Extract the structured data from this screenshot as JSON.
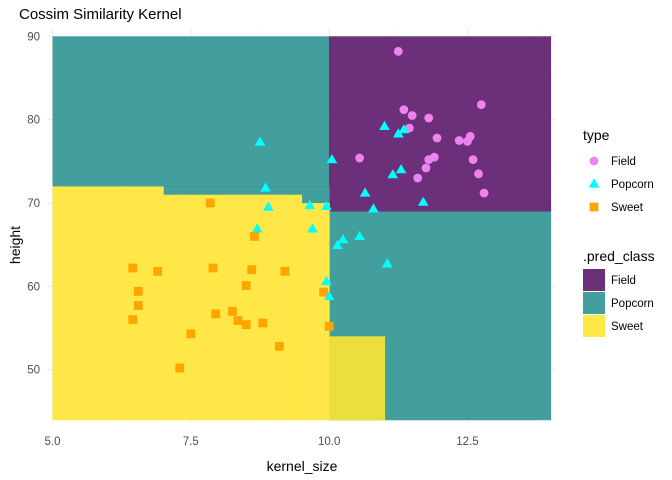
{
  "chart_data": {
    "type": "scatter",
    "title": "Cossim Similarity Kernel",
    "xlabel": "kernel_size",
    "ylabel": "height",
    "xlim": [
      4.9,
      14.1
    ],
    "ylim": [
      43.6,
      91
    ],
    "x_ticks": [
      5.0,
      7.5,
      10.0,
      12.5
    ],
    "x_tick_labels": [
      "5.0",
      "7.5",
      "10.0",
      "12.5"
    ],
    "y_ticks": [
      50,
      60,
      70,
      80,
      90
    ],
    "y_tick_labels": [
      "50",
      "60",
      "70",
      "80",
      "90"
    ],
    "grid": true,
    "legend_position": "right",
    "colors": {
      "Field_region": "#5b1a6a",
      "Popcorn_region": "#2e9592",
      "Sweet_region": "#ffe433",
      "Field_point": "#ee82ee",
      "Popcorn_point": "#00ffff",
      "Sweet_point": "#ffa500"
    },
    "prediction_regions": [
      {
        "class": "Popcorn",
        "x": [
          5.0,
          10.0
        ],
        "y": [
          72.0,
          90.0
        ]
      },
      {
        "class": "Field",
        "x": [
          10.0,
          14.0
        ],
        "y": [
          69.0,
          90.0
        ]
      },
      {
        "class": "Popcorn",
        "x": [
          10.0,
          14.0
        ],
        "y": [
          44.0,
          69.0
        ]
      },
      {
        "class": "Popcorn",
        "x": [
          9.5,
          10.0
        ],
        "y": [
          70.0,
          72.0
        ]
      },
      {
        "class": "Popcorn",
        "x": [
          7.0,
          9.5
        ],
        "y": [
          71.0,
          72.0
        ]
      },
      {
        "class": "Sweet",
        "x": [
          5.0,
          7.0
        ],
        "y": [
          44.0,
          72.0
        ]
      },
      {
        "class": "Sweet",
        "x": [
          7.0,
          9.5
        ],
        "y": [
          44.0,
          71.0
        ]
      },
      {
        "class": "Sweet",
        "x": [
          9.5,
          10.0
        ],
        "y": [
          44.0,
          70.0
        ]
      },
      {
        "class": "Sweet",
        "x": [
          10.0,
          11.0
        ],
        "y": [
          44.0,
          54.0
        ]
      }
    ],
    "series": [
      {
        "name": "Field",
        "shape": "circle",
        "points": [
          [
            11.25,
            88.2
          ],
          [
            11.35,
            81.2
          ],
          [
            11.5,
            80.5
          ],
          [
            11.8,
            80.2
          ],
          [
            12.75,
            81.8
          ],
          [
            11.45,
            79.0
          ],
          [
            11.95,
            77.8
          ],
          [
            12.55,
            78.0
          ],
          [
            12.35,
            77.5
          ],
          [
            12.5,
            77.4
          ],
          [
            11.9,
            75.5
          ],
          [
            11.8,
            75.2
          ],
          [
            10.55,
            75.4
          ],
          [
            12.6,
            75.2
          ],
          [
            11.75,
            74.2
          ],
          [
            12.7,
            73.5
          ],
          [
            11.6,
            73.0
          ],
          [
            12.8,
            71.2
          ]
        ]
      },
      {
        "name": "Popcorn",
        "shape": "triangle",
        "points": [
          [
            8.75,
            77.3
          ],
          [
            11.0,
            79.2
          ],
          [
            11.25,
            78.3
          ],
          [
            11.35,
            78.8
          ],
          [
            10.05,
            75.2
          ],
          [
            11.3,
            74.0
          ],
          [
            11.15,
            73.4
          ],
          [
            8.85,
            71.8
          ],
          [
            10.65,
            71.2
          ],
          [
            11.7,
            70.1
          ],
          [
            8.9,
            69.5
          ],
          [
            9.65,
            69.7
          ],
          [
            9.95,
            69.6
          ],
          [
            10.8,
            69.3
          ],
          [
            9.7,
            66.9
          ],
          [
            8.7,
            66.9
          ],
          [
            10.25,
            65.6
          ],
          [
            10.15,
            64.9
          ],
          [
            10.55,
            66.0
          ],
          [
            11.05,
            62.7
          ],
          [
            9.95,
            60.6
          ],
          [
            10.0,
            58.8
          ]
        ]
      },
      {
        "name": "Sweet",
        "shape": "square",
        "points": [
          [
            7.85,
            70.0
          ],
          [
            8.65,
            66.0
          ],
          [
            6.45,
            62.2
          ],
          [
            6.9,
            61.8
          ],
          [
            7.9,
            62.2
          ],
          [
            8.6,
            62.0
          ],
          [
            9.2,
            61.8
          ],
          [
            6.55,
            59.4
          ],
          [
            8.5,
            60.1
          ],
          [
            9.9,
            59.3
          ],
          [
            6.55,
            57.7
          ],
          [
            8.25,
            57.0
          ],
          [
            7.95,
            56.7
          ],
          [
            6.45,
            56.0
          ],
          [
            8.35,
            55.9
          ],
          [
            8.5,
            55.4
          ],
          [
            8.8,
            55.6
          ],
          [
            10.0,
            55.2
          ],
          [
            7.5,
            54.3
          ],
          [
            9.1,
            52.8
          ],
          [
            7.3,
            50.2
          ]
        ]
      }
    ],
    "legends": [
      {
        "title": "type",
        "items": [
          {
            "label": "Field",
            "shape": "circle",
            "color": "#ee82ee"
          },
          {
            "label": "Popcorn",
            "shape": "triangle",
            "color": "#00ffff"
          },
          {
            "label": "Sweet",
            "shape": "square",
            "color": "#ffa500"
          }
        ]
      },
      {
        "title": ".pred_class",
        "items": [
          {
            "label": "Field",
            "shape": "fill",
            "color": "#5b1a6a"
          },
          {
            "label": "Popcorn",
            "shape": "fill",
            "color": "#2e9592"
          },
          {
            "label": "Sweet",
            "shape": "fill",
            "color": "#ffe433"
          }
        ]
      }
    ]
  }
}
